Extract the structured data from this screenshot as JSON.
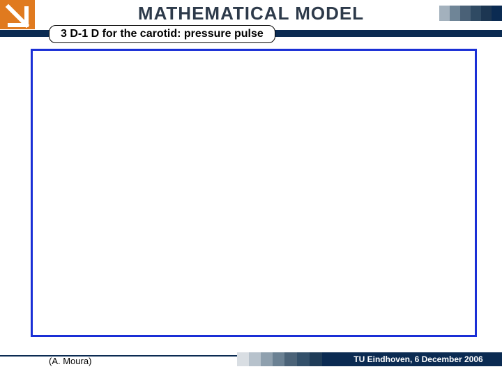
{
  "colors": {
    "navy": "#0b2b52",
    "orange": "#e07a1f",
    "frame_blue": "#1a2fd6",
    "title_text": "#2d3a4a",
    "hs1": "#a3b1bd",
    "hs2": "#6f8597",
    "hs3": "#4a6177",
    "hs4": "#2f4a63",
    "hs5": "#1c3652",
    "hs6": "#0b2b52",
    "fs1": "#d9dee3",
    "fs2": "#b7c2cc",
    "fs3": "#8fa0ae",
    "fs4": "#6b8193",
    "fs5": "#4b6378",
    "fs6": "#33506a",
    "fs7": "#1f3c58",
    "fs8": "#0b2b52"
  },
  "title": "MATHEMATICAL MODEL",
  "subtitle": "3 D-1 D for the carotid: pressure pulse",
  "author": "(A. Moura)",
  "footer_text": "TU Eindhoven, 6 December 2006",
  "logo": {
    "bg": "#e07a1f",
    "arrow": "#ffffff",
    "underline": "#0b2b52"
  },
  "header_stripe_widths": [
    15,
    15,
    15,
    15,
    15,
    15
  ],
  "footer_stripe_widths": [
    17,
    17,
    17,
    17,
    18,
    18,
    18,
    18
  ]
}
